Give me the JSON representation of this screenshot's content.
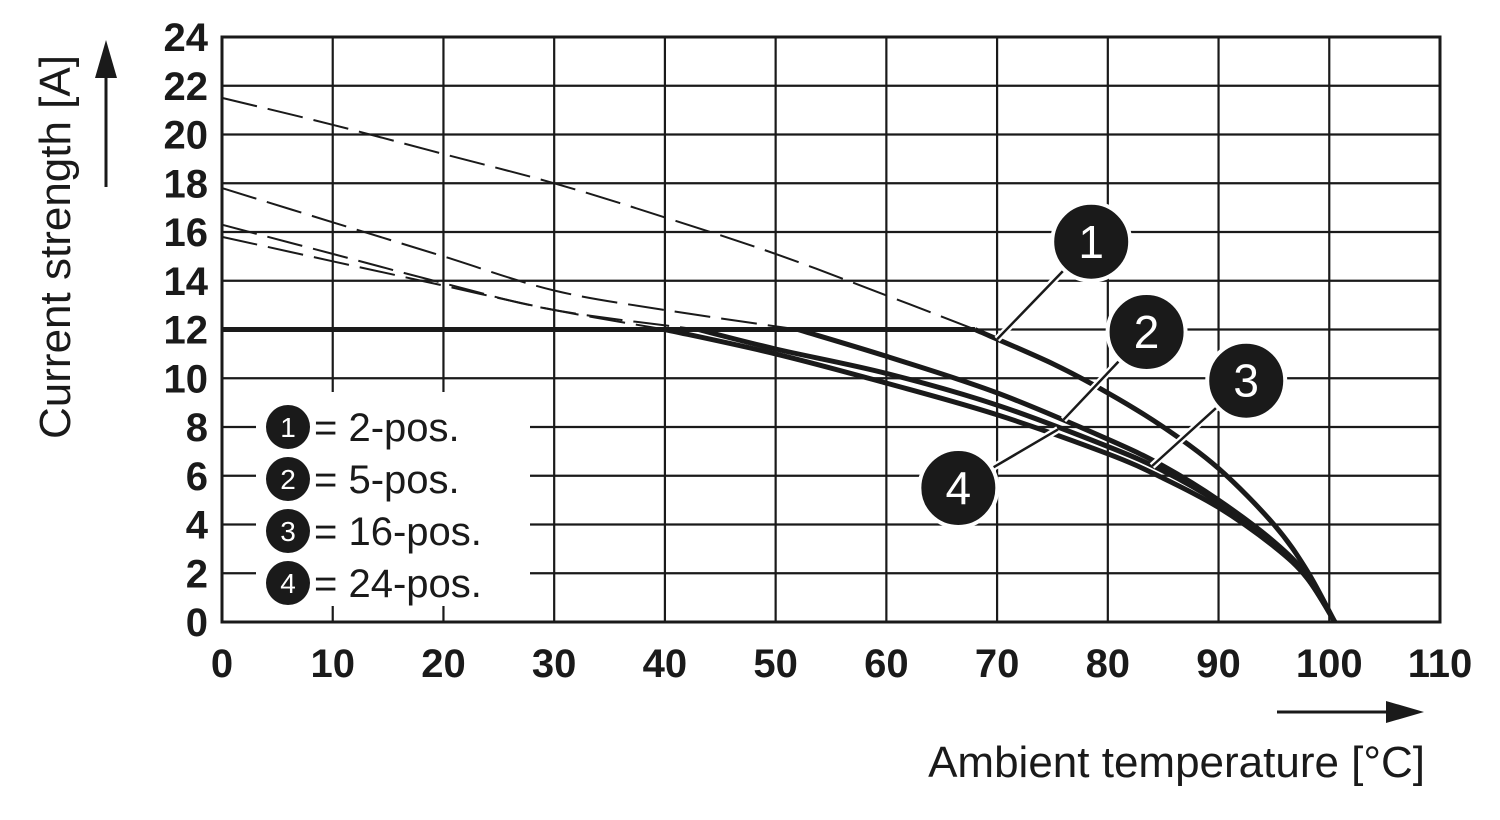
{
  "chart_data": {
    "type": "line",
    "title": "",
    "xlabel": "Ambient temperature [°C]",
    "ylabel": "Current strength [A]",
    "xlim": [
      0,
      110
    ],
    "ylim": [
      0,
      24
    ],
    "xticks": [
      0,
      10,
      20,
      30,
      40,
      50,
      60,
      70,
      80,
      90,
      100,
      110
    ],
    "yticks": [
      0,
      2,
      4,
      6,
      8,
      10,
      12,
      14,
      16,
      18,
      20,
      22,
      24
    ],
    "x_tick_labels": [
      "0",
      "10",
      "20",
      "30",
      "40",
      "50",
      "60",
      "70",
      "80",
      "90",
      "100",
      "110"
    ],
    "y_tick_labels": [
      "0",
      "2",
      "4",
      "6",
      "8",
      "10",
      "12",
      "14",
      "16",
      "18",
      "20",
      "22",
      "24"
    ],
    "grid": true,
    "current_limit": 12,
    "legend_position": "bottom-left",
    "legend": [
      {
        "marker": "1",
        "label": "= 2-pos."
      },
      {
        "marker": "2",
        "label": "= 5-pos."
      },
      {
        "marker": "3",
        "label": "= 16-pos."
      },
      {
        "marker": "4",
        "label": "= 24-pos."
      }
    ],
    "series": [
      {
        "marker": "1",
        "x": [
          0,
          10,
          20,
          30,
          40,
          50,
          60,
          68,
          75,
          80,
          85,
          90,
          95,
          98,
          100.5
        ],
        "y": [
          21.5,
          20.4,
          19.2,
          18.0,
          16.6,
          15.1,
          13.4,
          12.0,
          10.6,
          9.4,
          8.0,
          6.3,
          4.0,
          2.1,
          0
        ]
      },
      {
        "marker": "2",
        "x": [
          0,
          10,
          20,
          30,
          40,
          52,
          60,
          70,
          80,
          85,
          90,
          95,
          98,
          100.5
        ],
        "y": [
          17.8,
          16.4,
          15.0,
          13.6,
          12.8,
          12.0,
          10.9,
          9.4,
          7.5,
          6.4,
          5.0,
          3.3,
          1.9,
          0
        ]
      },
      {
        "marker": "3",
        "x": [
          0,
          10,
          20,
          30,
          43,
          50,
          60,
          70,
          80,
          85,
          90,
          95,
          98,
          100.5
        ],
        "y": [
          16.3,
          15.1,
          13.9,
          12.8,
          12.0,
          11.2,
          10.2,
          8.9,
          7.2,
          6.2,
          4.9,
          3.2,
          1.8,
          0
        ]
      },
      {
        "marker": "4",
        "x": [
          0,
          10,
          20,
          30,
          40,
          50,
          60,
          70,
          80,
          85,
          90,
          95,
          98,
          100.5
        ],
        "y": [
          15.8,
          14.8,
          13.8,
          12.8,
          12.0,
          11.0,
          9.8,
          8.5,
          6.9,
          5.9,
          4.7,
          3.1,
          1.8,
          0
        ]
      }
    ],
    "callouts": [
      {
        "marker": "1",
        "x": 78.5,
        "y": 15.6,
        "target_x": 70,
        "target_y": 11.6
      },
      {
        "marker": "2",
        "x": 83.5,
        "y": 11.9,
        "target_x": 76,
        "target_y": 8.3
      },
      {
        "marker": "3",
        "x": 92.5,
        "y": 9.9,
        "target_x": 84,
        "target_y": 6.4
      },
      {
        "marker": "4",
        "x": 66.5,
        "y": 5.5,
        "target_x": 75.5,
        "target_y": 7.9
      }
    ]
  }
}
